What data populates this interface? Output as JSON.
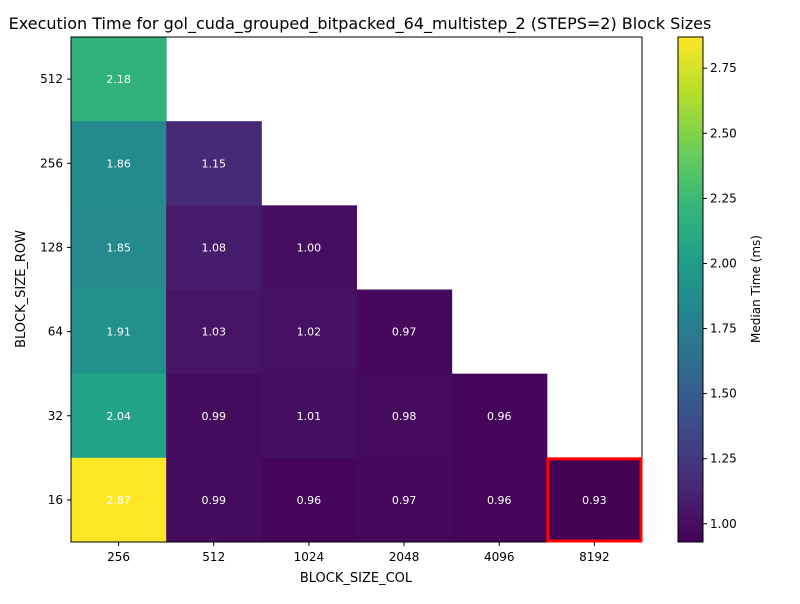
{
  "chart_data": {
    "type": "heatmap",
    "title": "Execution Time for gol_cuda_grouped_bitpacked_64_multistep_2 (STEPS=2) Block Sizes",
    "xlabel": "BLOCK_SIZE_COL",
    "ylabel": "BLOCK_SIZE_ROW",
    "x_categories": [
      "256",
      "512",
      "1024",
      "2048",
      "4096",
      "8192"
    ],
    "y_categories": [
      "512",
      "256",
      "128",
      "64",
      "32",
      "16"
    ],
    "values": [
      [
        2.18,
        null,
        null,
        null,
        null,
        null
      ],
      [
        1.86,
        1.15,
        null,
        null,
        null,
        null
      ],
      [
        1.85,
        1.08,
        1.0,
        null,
        null,
        null
      ],
      [
        1.91,
        1.03,
        1.02,
        0.97,
        null,
        null
      ],
      [
        2.04,
        0.99,
        1.01,
        0.98,
        0.96,
        null
      ],
      [
        2.87,
        0.99,
        0.96,
        0.97,
        0.96,
        0.93
      ]
    ],
    "highlight": {
      "row": "16",
      "col": "8192",
      "color": "#ff0000"
    },
    "colorbar": {
      "label": "Median Time (ms)",
      "colormap": "viridis",
      "range": [
        0.93,
        2.87
      ],
      "ticks": [
        "1.00",
        "1.25",
        "1.50",
        "1.75",
        "2.00",
        "2.25",
        "2.50",
        "2.75"
      ]
    },
    "grid": false
  }
}
